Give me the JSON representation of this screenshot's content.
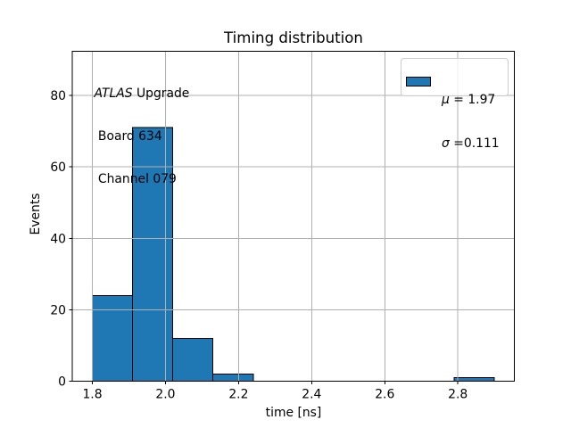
{
  "figure": {
    "background": "#ffffff"
  },
  "chart_data": {
    "type": "bar",
    "title": "Timing distribution",
    "xlabel": "time [ns]",
    "ylabel": "Events",
    "bin_edges": [
      1.8,
      1.91,
      2.02,
      2.13,
      2.24,
      2.35,
      2.46,
      2.57,
      2.68,
      2.79,
      2.9
    ],
    "counts": [
      24,
      71,
      12,
      2,
      0,
      0,
      0,
      0,
      0,
      1
    ],
    "xlim": [
      1.745,
      2.955
    ],
    "ylim": [
      0,
      92.3
    ],
    "xticks": [
      1.8,
      2.0,
      2.2,
      2.4,
      2.6,
      2.8
    ],
    "xtick_labels": [
      "1.8",
      "2.0",
      "2.2",
      "2.4",
      "2.6",
      "2.8"
    ],
    "yticks": [
      0,
      20,
      40,
      60,
      80
    ],
    "ytick_labels": [
      "0",
      "20",
      "40",
      "60",
      "80"
    ],
    "grid": true,
    "grid_on_top": true,
    "legend_position": "upper right",
    "colors": {
      "bar_fill": "#1f77b4",
      "bar_edge": "#000000",
      "grid": "#b0b0b0",
      "axis": "#000000",
      "legend_border": "#cccccc"
    }
  },
  "annotation": {
    "line1_italic": "ATLAS",
    "line1_rest": " Upgrade",
    "line2": " Board 634",
    "line3": " Channel 079"
  },
  "legend": {
    "entries": [
      {
        "symbol": "μ",
        "rest": " = 1.97"
      },
      {
        "symbol": "σ",
        "rest": " =0.111"
      }
    ]
  }
}
